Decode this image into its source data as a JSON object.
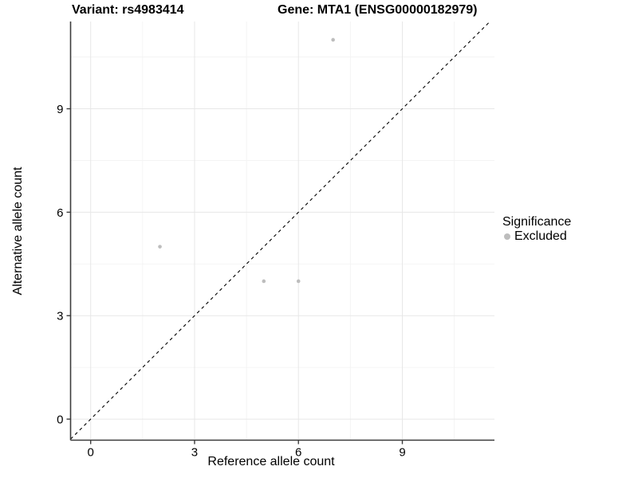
{
  "title": {
    "variant": "Variant: rs4983414",
    "gene": "Gene: MTA1 (ENSG00000182979)"
  },
  "axes": {
    "x_label": "Reference allele count",
    "y_label": "Alternative allele count"
  },
  "legend": {
    "title": "Significance",
    "items": [
      {
        "label": "Excluded",
        "marker": "circle-icon",
        "color": "#bdbdbd"
      }
    ]
  },
  "chart_data": {
    "type": "scatter",
    "title": "Variant: rs4983414 | Gene: MTA1 (ENSG00000182979)",
    "xlabel": "Reference allele count",
    "ylabel": "Alternative allele count",
    "series": [
      {
        "name": "Excluded",
        "color": "#bdbdbd",
        "points": [
          [
            7,
            11
          ],
          [
            2,
            5
          ],
          [
            5,
            4
          ],
          [
            6,
            4
          ]
        ]
      }
    ],
    "reference_line": {
      "type": "identity",
      "style": "dashed",
      "color": "#000000"
    },
    "x_ticks": [
      0,
      3,
      6,
      9
    ],
    "y_ticks": [
      0,
      3,
      6,
      9
    ],
    "x_minor_ticks": [
      1.5,
      4.5,
      7.5,
      10.5
    ],
    "y_minor_ticks": [
      1.5,
      4.5,
      7.5,
      10.5
    ],
    "xlim": [
      -0.58,
      11.66
    ],
    "ylim": [
      -0.61,
      11.53
    ],
    "grid": true,
    "legend_position": "right",
    "point_radius": 2.3,
    "colors": {
      "axis": "#3c3c3c",
      "grid_major": "#e7e7e7",
      "grid_minor": "#f3f3f3",
      "tick_label": "#000000"
    }
  }
}
